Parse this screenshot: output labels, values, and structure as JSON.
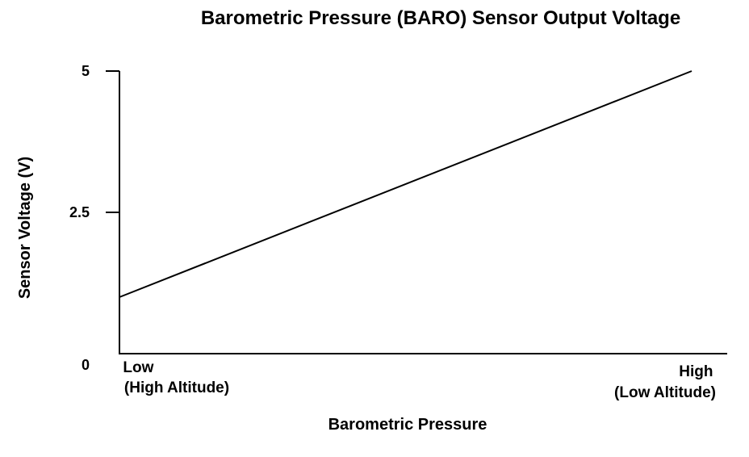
{
  "chart_data": {
    "type": "line",
    "title": "Barometric Pressure (BARO) Sensor Output Voltage",
    "xlabel": "Barometric Pressure",
    "ylabel": "Sensor Voltage (V)",
    "ylim": [
      0,
      5
    ],
    "xlim": [
      0,
      1
    ],
    "y_ticks": [
      {
        "value": 5,
        "label": "5"
      },
      {
        "value": 2.5,
        "label": "2.5"
      },
      {
        "value": 0,
        "label": "0"
      }
    ],
    "x_category_labels": [
      {
        "position": "start",
        "lines": [
          "Low",
          "(High Altitude)"
        ]
      },
      {
        "position": "end",
        "lines": [
          "High",
          "(Low Altitude)"
        ]
      }
    ],
    "series": [
      {
        "x": [
          0,
          1
        ],
        "y": [
          1.0,
          5.0
        ]
      }
    ],
    "grid": false,
    "line_color": "#000000"
  }
}
